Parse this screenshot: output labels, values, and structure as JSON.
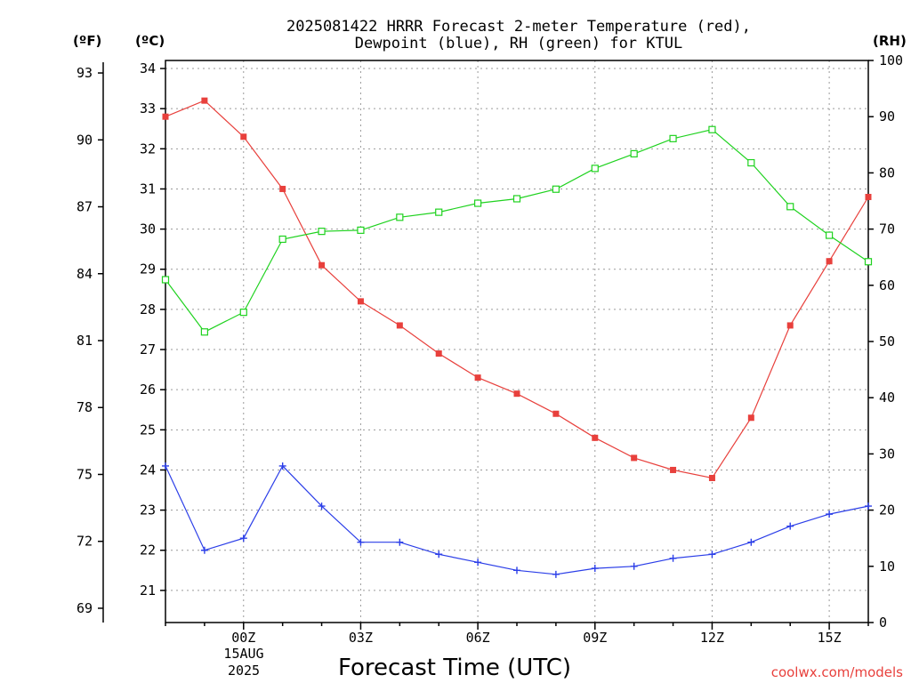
{
  "title_lines": [
    "2025081422 HRRR Forecast 2-meter Temperature (red),",
    "Dewpoint (blue), RH (green) for KTUL"
  ],
  "units": {
    "fahrenheit": "(ºF)",
    "celsius": "(ºC)",
    "rh": "(RH)"
  },
  "xlabel": "Forecast Time (UTC)",
  "credit": "coolwx.com/models",
  "colors": {
    "temperature": "#e8403c",
    "dewpoint": "#2b3ee8",
    "rh": "#1fd21f",
    "credit": "#e8403c"
  },
  "chart_data": {
    "type": "line",
    "x_hours": [
      -2,
      -1,
      0,
      1,
      2,
      3,
      4,
      5,
      6,
      7,
      8,
      9,
      10,
      11,
      12,
      13,
      14,
      15,
      16
    ],
    "x_tick_hours": [
      0,
      3,
      6,
      9,
      12,
      15
    ],
    "x_tick_labels": [
      "00Z",
      "03Z",
      "06Z",
      "09Z",
      "12Z",
      "15Z"
    ],
    "x_date_label": [
      "15AUG",
      "2025"
    ],
    "x_range_hours": [
      -2,
      16
    ],
    "y_left_fahrenheit": {
      "ticks": [
        69,
        72,
        75,
        78,
        81,
        84,
        87,
        90,
        93
      ]
    },
    "y_left_celsius": {
      "range": [
        20.2,
        34.2
      ],
      "ticks": [
        21,
        22,
        23,
        24,
        25,
        26,
        27,
        28,
        29,
        30,
        31,
        32,
        33,
        34
      ]
    },
    "y_right_rh": {
      "range": [
        0,
        100
      ],
      "ticks": [
        0,
        10,
        20,
        30,
        40,
        50,
        60,
        70,
        80,
        90,
        100
      ]
    },
    "series": [
      {
        "name": "Temperature",
        "axis": "celsius",
        "marker": "filled-square",
        "values": [
          32.8,
          33.2,
          32.3,
          31.0,
          29.1,
          28.2,
          27.6,
          26.9,
          26.3,
          25.9,
          25.4,
          24.8,
          24.3,
          24.0,
          23.8,
          25.3,
          27.6,
          29.2,
          30.8
        ]
      },
      {
        "name": "Dewpoint",
        "axis": "celsius",
        "marker": "plus",
        "values": [
          24.1,
          22.0,
          22.3,
          24.1,
          23.1,
          22.2,
          22.2,
          21.9,
          21.7,
          21.5,
          21.4,
          21.55,
          21.6,
          21.8,
          21.9,
          22.2,
          22.6,
          22.9,
          23.1
        ]
      },
      {
        "name": "RH",
        "axis": "rh",
        "marker": "open-square",
        "values": [
          61,
          51.7,
          55.2,
          68.2,
          69.6,
          69.8,
          72.1,
          73.0,
          74.6,
          75.4,
          77.1,
          80.8,
          83.4,
          86.1,
          87.7,
          81.8,
          74.0,
          68.9,
          64.2
        ]
      }
    ]
  }
}
